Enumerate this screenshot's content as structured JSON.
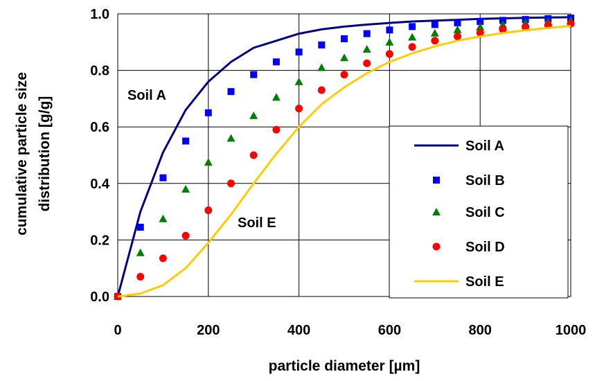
{
  "chart_data": {
    "type": "line",
    "title": "",
    "xlabel": "particle diameter  [µm]",
    "ylabel_lines": [
      "cumulative particle size",
      "distribution  [g/g]"
    ],
    "xlim": [
      0,
      1000
    ],
    "ylim": [
      0,
      1.0
    ],
    "xticks": [
      0,
      200,
      400,
      600,
      800,
      1000
    ],
    "xtick_labels": [
      "0",
      "200",
      "400",
      "600",
      "800",
      "1000"
    ],
    "yticks": [
      0.0,
      0.2,
      0.4,
      0.6,
      0.8,
      1.0
    ],
    "ytick_labels": [
      "0.0",
      "0.2",
      "0.4",
      "0.6",
      "0.8",
      "1.0"
    ],
    "grid": true,
    "legend_position": "right",
    "x": [
      0,
      50,
      100,
      150,
      200,
      250,
      300,
      350,
      400,
      450,
      500,
      550,
      600,
      650,
      700,
      750,
      800,
      850,
      900,
      950,
      1000
    ],
    "series": [
      {
        "name": "Soil A",
        "style": "line",
        "marker": "none",
        "color": "#000080",
        "values": [
          0.0,
          0.3,
          0.51,
          0.66,
          0.76,
          0.83,
          0.88,
          0.905,
          0.93,
          0.945,
          0.955,
          0.962,
          0.968,
          0.973,
          0.976,
          0.979,
          0.982,
          0.984,
          0.986,
          0.987,
          0.988
        ]
      },
      {
        "name": "Soil B",
        "style": "marker",
        "marker": "square",
        "color": "#0000FF",
        "values": [
          0.0,
          0.245,
          0.42,
          0.55,
          0.65,
          0.725,
          0.785,
          0.83,
          0.865,
          0.89,
          0.912,
          0.93,
          0.943,
          0.955,
          0.962,
          0.968,
          0.973,
          0.977,
          0.98,
          0.983,
          0.985
        ]
      },
      {
        "name": "Soil C",
        "style": "marker",
        "marker": "triangle",
        "color": "#008000",
        "values": [
          0.0,
          0.155,
          0.275,
          0.38,
          0.475,
          0.56,
          0.64,
          0.705,
          0.76,
          0.81,
          0.845,
          0.875,
          0.9,
          0.918,
          0.932,
          0.944,
          0.954,
          0.962,
          0.968,
          0.973,
          0.977
        ]
      },
      {
        "name": "Soil D",
        "style": "marker",
        "marker": "circle",
        "color": "#FF0000",
        "values": [
          0.0,
          0.07,
          0.135,
          0.215,
          0.305,
          0.4,
          0.5,
          0.59,
          0.665,
          0.73,
          0.785,
          0.825,
          0.858,
          0.883,
          0.905,
          0.92,
          0.933,
          0.945,
          0.953,
          0.96,
          0.965
        ]
      },
      {
        "name": "Soil E",
        "style": "line",
        "marker": "none",
        "color": "#FFCC00",
        "values": [
          0.0,
          0.01,
          0.04,
          0.1,
          0.19,
          0.29,
          0.4,
          0.505,
          0.6,
          0.68,
          0.74,
          0.79,
          0.83,
          0.86,
          0.885,
          0.905,
          0.92,
          0.932,
          0.942,
          0.95,
          0.957
        ]
      }
    ],
    "annotations": [
      {
        "text": "Soil A",
        "x": 100,
        "y": 0.72
      },
      {
        "text": "Soil E",
        "x": 240,
        "y": 0.26
      }
    ]
  }
}
